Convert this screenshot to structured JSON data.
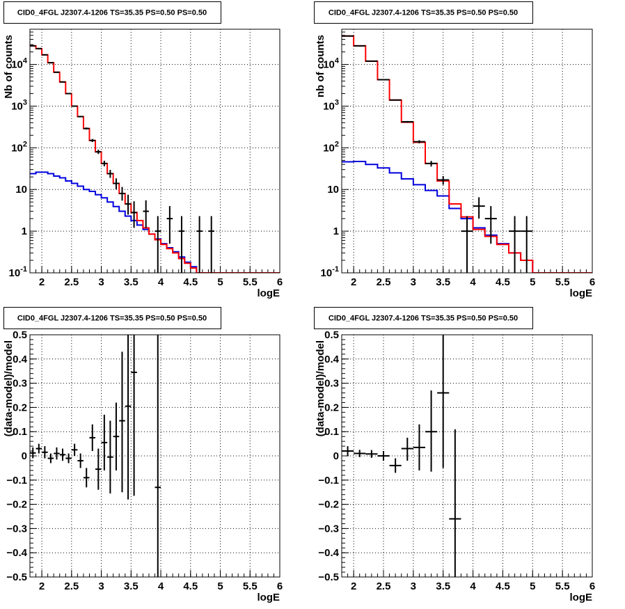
{
  "chart_data": [
    {
      "type": "line",
      "title": "CID0_4FGL J2307.4-1206 TS=35.35 PS=0.50 PS=0.50",
      "xlabel": "logE",
      "ylabel": "Nb of counts",
      "xlim": [
        1.8,
        6.0
      ],
      "ylim": [
        0.1,
        70000
      ],
      "yscale": "log",
      "grid": true,
      "xticks": [
        "2",
        "2.5",
        "3",
        "3.5",
        "4",
        "4.5",
        "5",
        "5.5",
        "6"
      ],
      "yticks": [
        "10^{-1}",
        "1",
        "10",
        "10^{2}",
        "10^{3}",
        "10^{4}"
      ],
      "bin_edges": [
        1.8,
        1.9,
        2.0,
        2.1,
        2.2,
        2.3,
        2.4,
        2.5,
        2.6,
        2.7,
        2.8,
        2.9,
        3.0,
        3.1,
        3.2,
        3.3,
        3.4,
        3.5,
        3.6,
        3.7,
        3.8,
        3.9,
        4.0,
        4.1,
        4.2,
        4.3,
        4.4,
        4.5,
        4.6,
        4.7,
        4.8,
        4.9,
        5.0,
        5.1,
        5.2,
        5.3,
        5.4,
        5.5,
        5.6,
        5.7,
        5.8,
        5.9,
        6.0
      ],
      "series": [
        {
          "color": "#ff0000",
          "style": "hist",
          "values": [
            28000,
            24000,
            17000,
            11000,
            6500,
            3800,
            2000,
            1000,
            560,
            290,
            150,
            80,
            42,
            24,
            14,
            8,
            4.5,
            2.8,
            1.8,
            1.2,
            0.85,
            0.62,
            0.48,
            0.38,
            0.3,
            0.22,
            0.17,
            0.13,
            0.1,
            0.1,
            0.1,
            0.1,
            0.1,
            0.1,
            0.1,
            0.1,
            0.1,
            0.1,
            0.1,
            0.1,
            0.1,
            0.1
          ]
        },
        {
          "color": "#0000dd",
          "style": "hist",
          "values": [
            24,
            26,
            26,
            24,
            21,
            19,
            16,
            14,
            12,
            10,
            9,
            7.5,
            6.3,
            5.0,
            3.9,
            3.0,
            2.3,
            1.8,
            1.4,
            1.1,
            0.85,
            0.65,
            0.5,
            0.4,
            0.32,
            0.24,
            0.18,
            0.14,
            0.1,
            0.1,
            0.1,
            0.1,
            0.1,
            0.1,
            0.1,
            0.1,
            0.1,
            0.1,
            0.1,
            0.1,
            0.1,
            0.1
          ]
        },
        {
          "color": "#000000",
          "style": "points",
          "x": [
            1.85,
            1.95,
            2.05,
            2.15,
            2.25,
            2.35,
            2.45,
            2.55,
            2.65,
            2.75,
            2.85,
            2.95,
            3.05,
            3.15,
            3.25,
            3.35,
            3.45,
            3.55,
            3.75,
            3.95,
            4.15,
            4.35,
            4.65,
            4.85
          ],
          "y": [
            28000,
            24000,
            17000,
            11000,
            6500,
            3800,
            2000,
            1000,
            560,
            290,
            150,
            80,
            42,
            24,
            14,
            8,
            4.5,
            2.8,
            3,
            1,
            2,
            1,
            1,
            1
          ],
          "y_low": [
            27800,
            23800,
            16800,
            10900,
            6400,
            3740,
            1960,
            970,
            540,
            275,
            138,
            71,
            36,
            19,
            10,
            5.4,
            2.5,
            1.2,
            1.2,
            0.1,
            0.5,
            0.1,
            0.1,
            0.1
          ],
          "y_high": [
            28200,
            24200,
            17200,
            11100,
            6600,
            3860,
            2045,
            1030,
            585,
            307,
            163,
            90,
            49,
            29.5,
            18.5,
            11.5,
            7.5,
            5.2,
            5.5,
            2.3,
            4,
            2.3,
            2.3,
            2.3
          ]
        }
      ]
    },
    {
      "type": "line",
      "title": "CID0_4FGL J2307.4-1206 TS=35.35 PS=0.50 PS=0.50",
      "xlabel": "logE",
      "ylabel": "nb of counts",
      "xlim": [
        1.8,
        6.0
      ],
      "ylim": [
        0.1,
        70000
      ],
      "yscale": "log",
      "grid": true,
      "xticks": [
        "2",
        "2.5",
        "3",
        "3.5",
        "4",
        "4.5",
        "5",
        "5.5",
        "6"
      ],
      "yticks": [
        "10^{-1}",
        "1",
        "10",
        "10^{2}",
        "10^{3}",
        "10^{4}"
      ],
      "bin_edges": [
        1.8,
        2.0,
        2.2,
        2.4,
        2.6,
        2.8,
        3.0,
        3.2,
        3.4,
        3.6,
        3.8,
        4.0,
        4.2,
        4.4,
        4.6,
        4.8,
        5.0,
        5.2,
        5.4,
        5.6,
        5.8,
        6.0
      ],
      "series": [
        {
          "color": "#ff0000",
          "style": "hist",
          "values": [
            48000,
            28000,
            12000,
            4300,
            1400,
            410,
            135,
            42,
            16,
            4.5,
            2.2,
            1.1,
            0.75,
            0.48,
            0.3,
            0.2,
            0.1,
            0.1,
            0.1,
            0.1,
            0.1
          ]
        },
        {
          "color": "#0000dd",
          "style": "hist",
          "values": [
            46,
            47,
            40,
            33,
            25,
            18,
            13,
            9.5,
            7,
            3.5,
            2.0,
            1.2,
            0.8,
            0.5,
            0.3,
            0.2,
            0.1,
            0.1,
            0.1,
            0.1,
            0.1
          ]
        },
        {
          "color": "#000000",
          "style": "points",
          "x": [
            1.9,
            2.1,
            2.3,
            2.5,
            2.7,
            2.9,
            3.1,
            3.3,
            3.5,
            3.9,
            4.1,
            4.3,
            4.7,
            4.9
          ],
          "y": [
            48000,
            28000,
            12000,
            4300,
            1400,
            420,
            140,
            42,
            17,
            1,
            4,
            2,
            1,
            1
          ],
          "y_low": [
            47700,
            27800,
            11900,
            4230,
            1360,
            400,
            128,
            35.5,
            13,
            0.1,
            2,
            0.5,
            0.1,
            0.1
          ],
          "y_high": [
            48300,
            28200,
            12100,
            4370,
            1440,
            440,
            152,
            48.5,
            21,
            2.3,
            6.5,
            4,
            2.3,
            2.3
          ]
        }
      ]
    },
    {
      "type": "scatter",
      "title": "CID0_4FGL J2307.4-1206 TS=35.35 PS=0.50 PS=0.50",
      "xlabel": "logE",
      "ylabel": "(data-model)/model",
      "xlim": [
        1.8,
        6.0
      ],
      "ylim": [
        -0.5,
        0.5
      ],
      "grid": true,
      "xticks": [
        "2",
        "2.5",
        "3",
        "3.5",
        "4",
        "4.5",
        "5",
        "5.5",
        "6"
      ],
      "yticks": [
        "−0.5",
        "−0.4",
        "−0.3",
        "−0.2",
        "−0.1",
        "0",
        "0.1",
        "0.2",
        "0.3",
        "0.4",
        "0.5"
      ],
      "bin_width": 0.1,
      "points": {
        "x": [
          1.85,
          1.95,
          2.05,
          2.15,
          2.25,
          2.35,
          2.45,
          2.55,
          2.65,
          2.75,
          2.85,
          2.95,
          3.05,
          3.15,
          3.25,
          3.35,
          3.45,
          3.55,
          3.95
        ],
        "y": [
          0.012,
          0.03,
          0.015,
          -0.01,
          0.01,
          0.005,
          -0.01,
          0.025,
          -0.02,
          -0.09,
          0.075,
          -0.055,
          0.055,
          -0.005,
          0.08,
          0.145,
          0.205,
          0.345,
          -0.13
        ],
        "y_low": [
          -0.01,
          0.01,
          -0.01,
          -0.03,
          -0.015,
          -0.02,
          -0.03,
          0.0,
          -0.05,
          -0.13,
          0.02,
          -0.14,
          -0.06,
          -0.155,
          -0.06,
          -0.15,
          -0.18,
          -0.165,
          -0.5
        ],
        "y_high": [
          0.035,
          0.05,
          0.04,
          0.01,
          0.035,
          0.03,
          0.01,
          0.05,
          0.01,
          -0.05,
          0.13,
          0.03,
          0.17,
          0.145,
          0.22,
          0.43,
          0.5,
          0.5,
          0.5
        ]
      }
    },
    {
      "type": "scatter",
      "title": "CID0_4FGL J2307.4-1206 TS=35.35 PS=0.50 PS=0.50",
      "xlabel": "logE",
      "ylabel": "(data-model)/model",
      "xlim": [
        1.8,
        6.0
      ],
      "ylim": [
        -0.5,
        0.5
      ],
      "grid": true,
      "xticks": [
        "2",
        "2.5",
        "3",
        "3.5",
        "4",
        "4.5",
        "5",
        "5.5",
        "6"
      ],
      "yticks": [
        "−0.5",
        "−0.4",
        "−0.3",
        "−0.2",
        "−0.1",
        "0",
        "0.1",
        "0.2",
        "0.3",
        "0.4",
        "0.5"
      ],
      "bin_width": 0.2,
      "points": {
        "x": [
          1.9,
          2.1,
          2.3,
          2.5,
          2.7,
          2.9,
          3.1,
          3.3,
          3.5,
          3.7
        ],
        "y": [
          0.02,
          0.01,
          0.008,
          0.0,
          -0.04,
          0.03,
          0.035,
          0.1,
          0.26,
          -0.26
        ],
        "y_low": [
          0.0,
          -0.005,
          -0.008,
          -0.02,
          -0.07,
          -0.02,
          -0.06,
          -0.065,
          -0.05,
          -0.5
        ],
        "y_high": [
          0.04,
          0.025,
          0.024,
          0.02,
          -0.01,
          0.075,
          0.13,
          0.27,
          0.5,
          0.11
        ]
      }
    }
  ]
}
